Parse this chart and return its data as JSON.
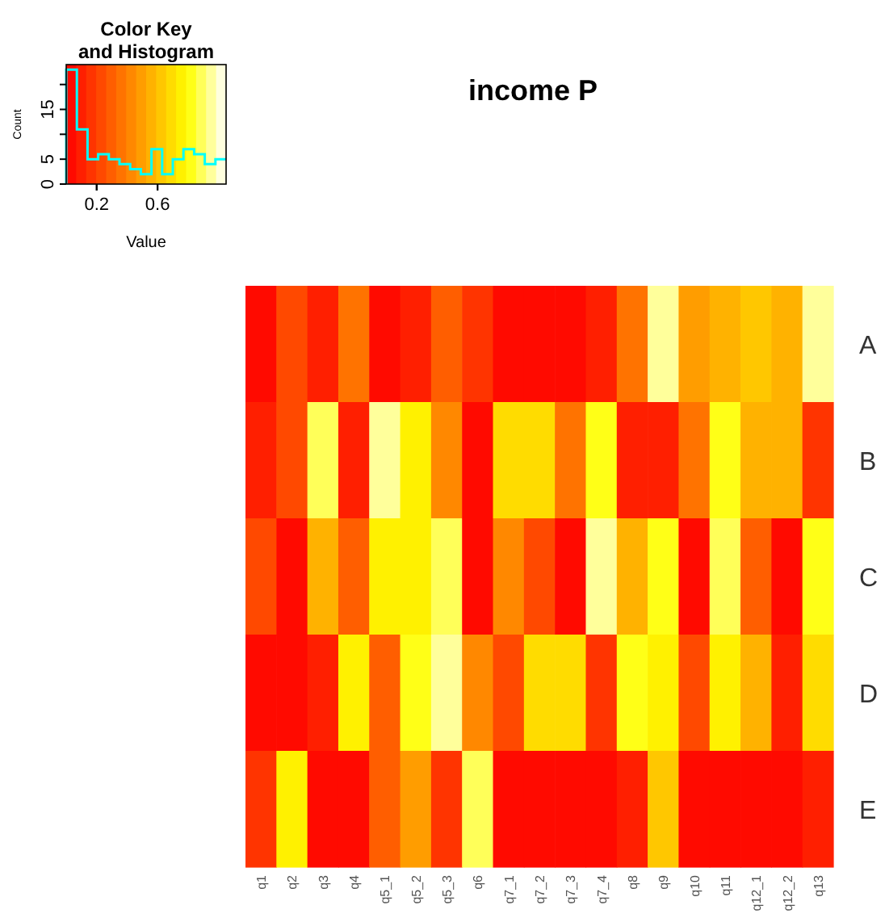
{
  "chart_data": [
    {
      "type": "histogram",
      "title": "Color Key\nand Histogram",
      "xlabel": "Value",
      "ylabel": "Count",
      "color": "#00ffff",
      "bins": [
        0,
        0.07,
        0.14,
        0.21,
        0.28,
        0.35,
        0.42,
        0.49,
        0.56,
        0.63,
        0.7,
        0.77,
        0.84,
        0.91,
        0.98,
        1.05
      ],
      "values": [
        23,
        11,
        5,
        6,
        5,
        4,
        3,
        2,
        7,
        2,
        5,
        7,
        6,
        4,
        5
      ],
      "xlim": [
        0,
        1.05
      ],
      "xticks": [
        0.2,
        0.6
      ],
      "tick_labels": "y",
      "ylim": [
        0,
        24
      ],
      "yticks": [
        0,
        5,
        {
          "value": 10,
          "label": null
        },
        15,
        {
          "value": 20,
          "label": null
        }
      ]
    },
    {
      "type": "heatmap",
      "title": "income P",
      "clim": [
        0,
        1.05
      ],
      "cticks": [
        0.2,
        0.6
      ],
      "categories": [
        "q1",
        "q2",
        "q3",
        "q4",
        "q5_1",
        "q5_2",
        "q5_3",
        "q6",
        "q7_1",
        "q7_2",
        "q7_3",
        "q7_4",
        "q8",
        "q9",
        "q10",
        "q11",
        "q12_1",
        "q12_2",
        "q13"
      ],
      "y_categories": [
        "A",
        "B",
        "C",
        "D",
        "E"
      ],
      "cells": [
        [
          0.03,
          0.24,
          0.1,
          0.36,
          0.03,
          0.1,
          0.3,
          0.17,
          0.03,
          0.03,
          0.03,
          0.1,
          0.36,
          0.98,
          0.5,
          0.57,
          0.63,
          0.57,
          0.98
        ],
        [
          0.1,
          0.24,
          0.91,
          0.1,
          0.98,
          0.77,
          0.43,
          0.03,
          0.7,
          0.7,
          0.36,
          0.84,
          0.1,
          0.1,
          0.36,
          0.84,
          0.57,
          0.57,
          0.17
        ],
        [
          0.24,
          0.03,
          0.57,
          0.3,
          0.77,
          0.77,
          0.91,
          0.03,
          0.43,
          0.24,
          0.03,
          0.98,
          0.57,
          0.84,
          0.03,
          0.91,
          0.3,
          0.03,
          0.84
        ],
        [
          0.03,
          0.03,
          0.1,
          0.77,
          0.3,
          0.84,
          0.98,
          0.43,
          0.24,
          0.7,
          0.7,
          0.17,
          0.84,
          0.77,
          0.24,
          0.77,
          0.57,
          0.1,
          0.7
        ],
        [
          0.17,
          0.77,
          0.03,
          0.03,
          0.3,
          0.5,
          0.17,
          0.91,
          0.03,
          0.03,
          0.03,
          0.03,
          0.1,
          0.63,
          0.03,
          0.03,
          0.03,
          0.03,
          0.1
        ]
      ]
    }
  ]
}
